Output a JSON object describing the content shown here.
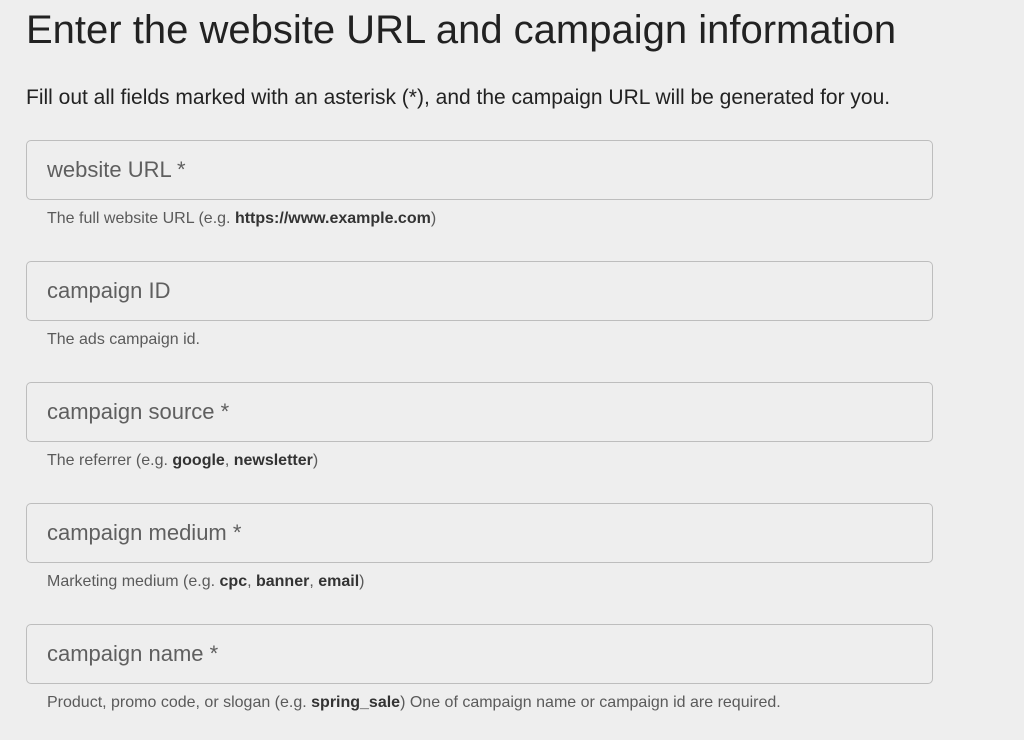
{
  "header": {
    "title": "Enter the website URL and campaign information",
    "subtitle": "Fill out all fields marked with an asterisk (*), and the campaign URL will be generated for you."
  },
  "fields": [
    {
      "name": "website-url",
      "placeholder": "website URL *",
      "value": "",
      "helper": [
        {
          "text": "The full website URL (e.g. "
        },
        {
          "text": "https://www.example.com",
          "bold": true
        },
        {
          "text": ")"
        }
      ]
    },
    {
      "name": "campaign-id",
      "placeholder": "campaign ID",
      "value": "",
      "helper": [
        {
          "text": "The ads campaign id."
        }
      ]
    },
    {
      "name": "campaign-source",
      "placeholder": "campaign source *",
      "value": "",
      "helper": [
        {
          "text": "The referrer (e.g. "
        },
        {
          "text": "google",
          "bold": true
        },
        {
          "text": ", "
        },
        {
          "text": "newsletter",
          "bold": true
        },
        {
          "text": ")"
        }
      ]
    },
    {
      "name": "campaign-medium",
      "placeholder": "campaign medium *",
      "value": "",
      "helper": [
        {
          "text": "Marketing medium (e.g. "
        },
        {
          "text": "cpc",
          "bold": true
        },
        {
          "text": ", "
        },
        {
          "text": "banner",
          "bold": true
        },
        {
          "text": ", "
        },
        {
          "text": "email",
          "bold": true
        },
        {
          "text": ")"
        }
      ]
    },
    {
      "name": "campaign-name",
      "placeholder": "campaign name *",
      "value": "",
      "helper": [
        {
          "text": "Product, promo code, or slogan (e.g. "
        },
        {
          "text": "spring_sale",
          "bold": true
        },
        {
          "text": ") One of campaign name or campaign id are required."
        }
      ]
    }
  ]
}
